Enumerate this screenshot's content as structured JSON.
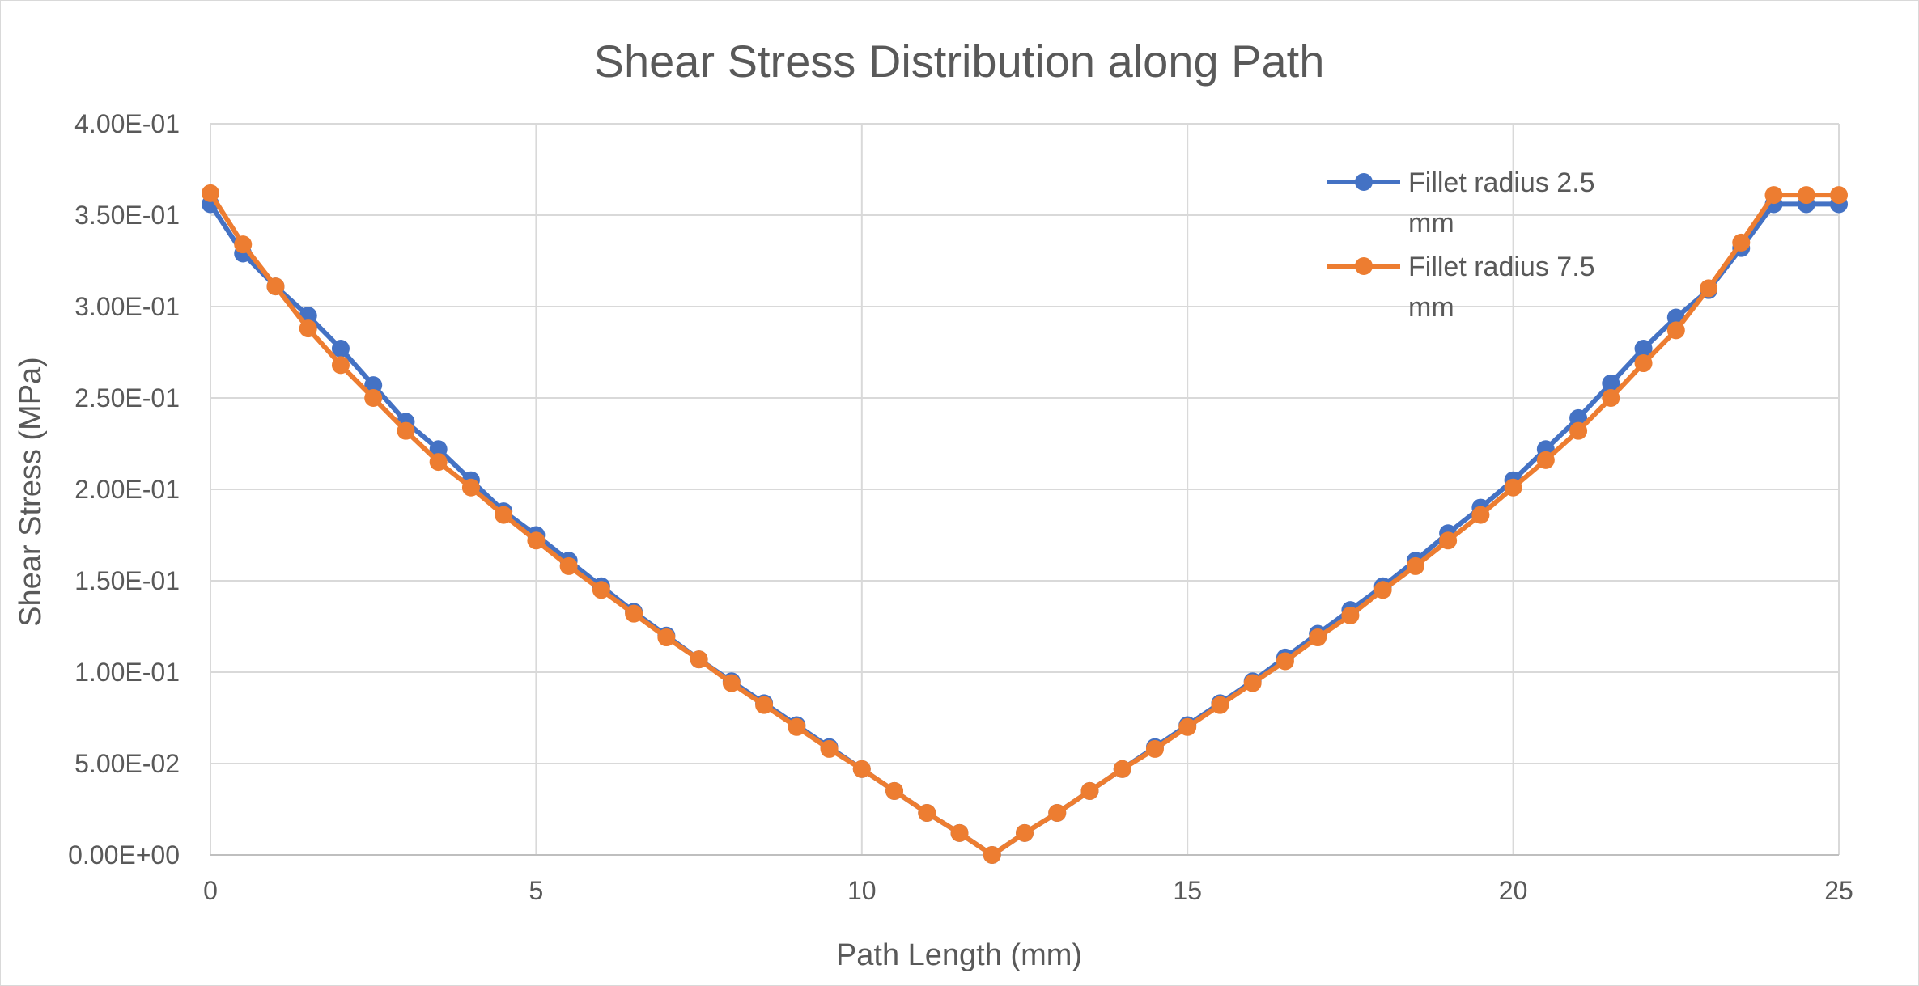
{
  "chart_data": {
    "type": "line",
    "title": "Shear Stress Distribution along Path",
    "xlabel": "Path Length (mm)",
    "ylabel": "Shear Stress (MPa)",
    "xlim": [
      0,
      25
    ],
    "ylim": [
      0,
      0.4
    ],
    "x_ticks": [
      0,
      5,
      10,
      15,
      20,
      25
    ],
    "x_tick_labels": [
      "0",
      "5",
      "10",
      "15",
      "20",
      "25"
    ],
    "y_ticks": [
      0,
      0.05,
      0.1,
      0.15,
      0.2,
      0.25,
      0.3,
      0.35,
      0.4
    ],
    "y_tick_labels": [
      "0.00E+00",
      "5.00E-02",
      "1.00E-01",
      "1.50E-01",
      "2.00E-01",
      "2.50E-01",
      "3.00E-01",
      "3.50E-01",
      "4.00E-01"
    ],
    "grid": true,
    "legend_position": "top-right",
    "series": [
      {
        "name": "Fillet radius 2.5 mm",
        "legend_lines": [
          "Fillet radius 2.5",
          "mm"
        ],
        "color": "#4472C4",
        "x": [
          0,
          0.5,
          1.0,
          1.5,
          2.0,
          2.5,
          3.0,
          3.5,
          4.0,
          4.5,
          5.0,
          5.5,
          6.0,
          6.5,
          7.0,
          7.5,
          8.0,
          8.5,
          9.0,
          9.5,
          10.0,
          10.5,
          11.0,
          11.5,
          12.0,
          12.5,
          13.0,
          13.5,
          14.0,
          14.5,
          15.0,
          15.5,
          16.0,
          16.5,
          17.0,
          17.5,
          18.0,
          18.5,
          19.0,
          19.5,
          20.0,
          20.5,
          21.0,
          21.5,
          22.0,
          22.5,
          23.0,
          23.5,
          24.0,
          24.5,
          25.0
        ],
        "y": [
          0.356,
          0.329,
          0.311,
          0.295,
          0.277,
          0.257,
          0.237,
          0.222,
          0.205,
          0.188,
          0.175,
          0.161,
          0.147,
          0.133,
          0.12,
          0.107,
          0.095,
          0.083,
          0.071,
          0.059,
          0.047,
          0.035,
          0.023,
          0.012,
          0.0,
          0.012,
          0.023,
          0.035,
          0.047,
          0.059,
          0.071,
          0.083,
          0.095,
          0.108,
          0.121,
          0.134,
          0.147,
          0.161,
          0.176,
          0.19,
          0.205,
          0.222,
          0.239,
          0.258,
          0.277,
          0.294,
          0.309,
          0.332,
          0.356,
          0.356,
          0.356
        ]
      },
      {
        "name": "Fillet radius 7.5 mm",
        "legend_lines": [
          "Fillet radius 7.5",
          "mm"
        ],
        "color": "#ED7D31",
        "x": [
          0,
          0.5,
          1.0,
          1.5,
          2.0,
          2.5,
          3.0,
          3.5,
          4.0,
          4.5,
          5.0,
          5.5,
          6.0,
          6.5,
          7.0,
          7.5,
          8.0,
          8.5,
          9.0,
          9.5,
          10.0,
          10.5,
          11.0,
          11.5,
          12.0,
          12.5,
          13.0,
          13.5,
          14.0,
          14.5,
          15.0,
          15.5,
          16.0,
          16.5,
          17.0,
          17.5,
          18.0,
          18.5,
          19.0,
          19.5,
          20.0,
          20.5,
          21.0,
          21.5,
          22.0,
          22.5,
          23.0,
          23.5,
          24.0,
          24.5,
          25.0
        ],
        "y": [
          0.362,
          0.334,
          0.311,
          0.288,
          0.268,
          0.25,
          0.232,
          0.215,
          0.201,
          0.186,
          0.172,
          0.158,
          0.145,
          0.132,
          0.119,
          0.107,
          0.094,
          0.082,
          0.07,
          0.058,
          0.047,
          0.035,
          0.023,
          0.012,
          0.0,
          0.012,
          0.023,
          0.035,
          0.047,
          0.058,
          0.07,
          0.082,
          0.094,
          0.106,
          0.119,
          0.131,
          0.145,
          0.158,
          0.172,
          0.186,
          0.201,
          0.216,
          0.232,
          0.25,
          0.269,
          0.287,
          0.31,
          0.335,
          0.361,
          0.361,
          0.361
        ]
      }
    ]
  }
}
